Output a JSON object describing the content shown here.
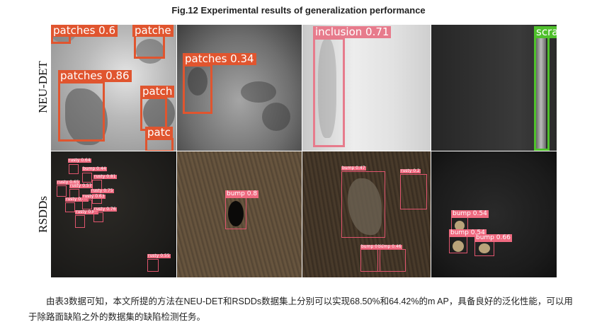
{
  "figure": {
    "title": "Fig.12 Experimental results of generalization performance",
    "row_labels": [
      "NEU-DET",
      "RSDDs"
    ]
  },
  "neu_det": [
    {
      "cell": 1,
      "detections": [
        {
          "label": "patches 0.6",
          "class": "patches",
          "score": 0.6
        },
        {
          "label": "patche",
          "class": "patches"
        },
        {
          "label": "patches 0.86",
          "class": "patches",
          "score": 0.86
        },
        {
          "label": "patch",
          "class": "patches"
        },
        {
          "label": "patc",
          "class": "patches"
        }
      ]
    },
    {
      "cell": 2,
      "detections": [
        {
          "label": "patches 0.34",
          "class": "patches",
          "score": 0.34
        }
      ]
    },
    {
      "cell": 3,
      "detections": [
        {
          "label": "inclusion 0.71",
          "class": "inclusion",
          "score": 0.71
        }
      ]
    },
    {
      "cell": 4,
      "detections": [
        {
          "label": "scra",
          "class": "scratches"
        }
      ]
    }
  ],
  "rsdds": [
    {
      "cell": 1,
      "detections": [
        {
          "label": "rusty 0.64"
        },
        {
          "label": "bump 0.44"
        },
        {
          "label": "rusty 0.81"
        },
        {
          "label": "rusty 0.65"
        },
        {
          "label": "rusty 0.57"
        },
        {
          "label": "rusty 0.75"
        },
        {
          "label": "rusty 0.62"
        },
        {
          "label": "rusty 0.63"
        },
        {
          "label": "rusty 0.81"
        },
        {
          "label": "rusty 0.76"
        },
        {
          "label": "rusty 0.55"
        }
      ]
    },
    {
      "cell": 2,
      "detections": [
        {
          "label": "bump 0.8"
        }
      ]
    },
    {
      "cell": 3,
      "detections": [
        {
          "label": "bump 0.47"
        },
        {
          "label": "rusty 0.2"
        },
        {
          "label": "bump 0.48"
        },
        {
          "label": "bump 0.46"
        }
      ]
    },
    {
      "cell": 4,
      "detections": [
        {
          "label": "bump 0.54"
        },
        {
          "label": "bump 0.54"
        },
        {
          "label": "bump 0.66"
        }
      ]
    }
  ],
  "caption": "由表3数据可知，本文所提的方法在NEU-DET和RSDDs数据集上分别可以实现68.50%和64.42%的m AP，具备良好的泛化性能，可以用于除路面缺陷之外的数据集的缺陷检测任务。",
  "colors": {
    "patches": "#e0552f",
    "inclusion": "#e77b8c",
    "scratches": "#4fc02c",
    "rsdds_box": "#e0556e"
  }
}
